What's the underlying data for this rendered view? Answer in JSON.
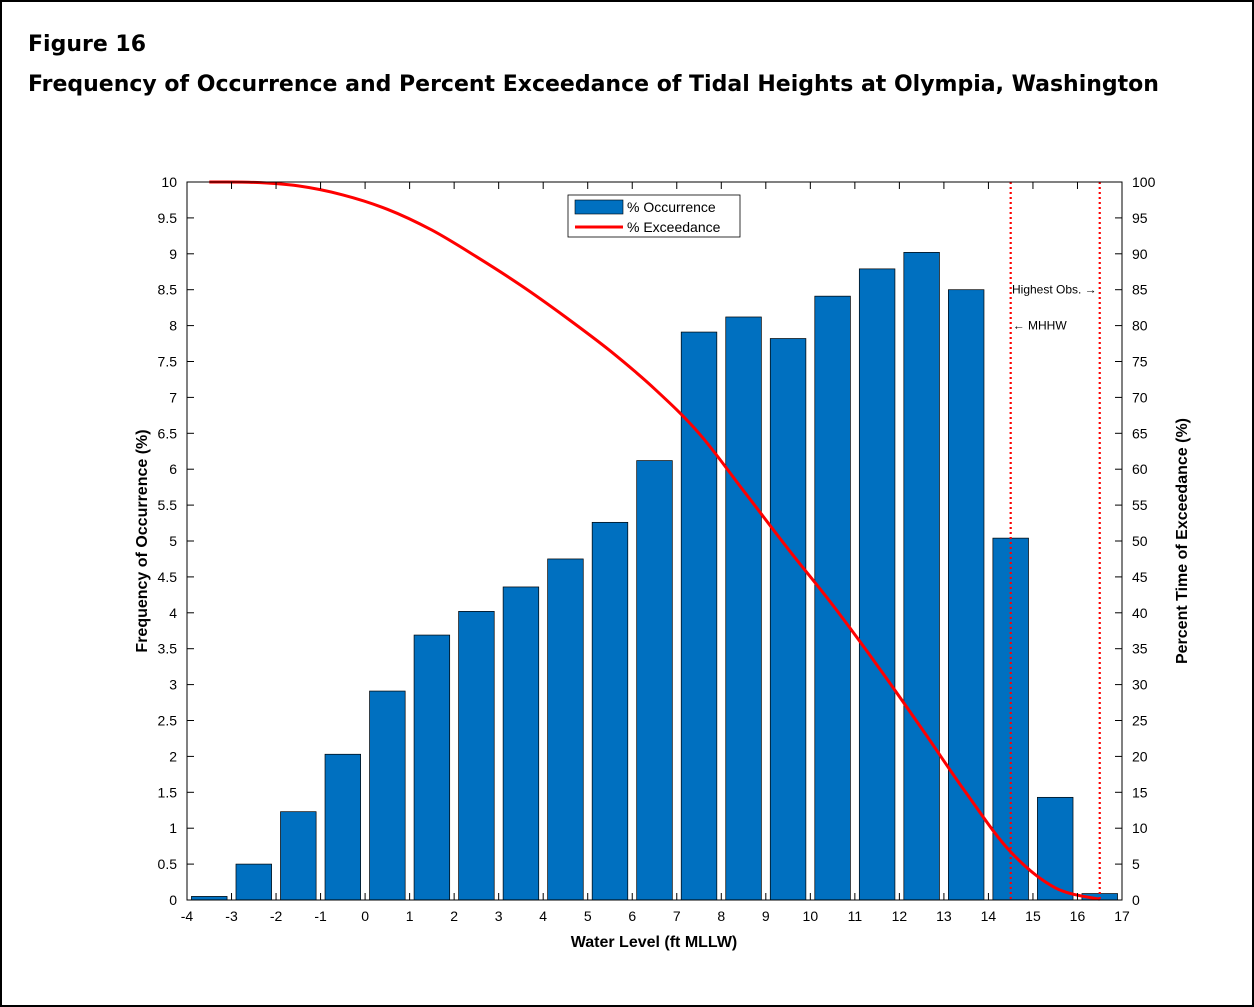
{
  "figure": {
    "label": "Figure 16",
    "title": "Frequency of Occurrence and Percent Exceedance of Tidal Heights at Olympia, Washington"
  },
  "chart_data": {
    "type": "bar",
    "xlabel": "Water Level (ft MLLW)",
    "ylabel_left": "Frequency of Occurrence (%)",
    "ylabel_right": "Percent Time of Exceedance (%)",
    "xlim": [
      -4,
      17
    ],
    "ylim_left": [
      0,
      10
    ],
    "ylim_right": [
      0,
      100
    ],
    "x_ticks": [
      -4,
      -3,
      -2,
      -1,
      0,
      1,
      2,
      3,
      4,
      5,
      6,
      7,
      8,
      9,
      10,
      11,
      12,
      13,
      14,
      15,
      16,
      17
    ],
    "y_ticks_left": [
      0,
      0.5,
      1,
      1.5,
      2,
      2.5,
      3,
      3.5,
      4,
      4.5,
      5,
      5.5,
      6,
      6.5,
      7,
      7.5,
      8,
      8.5,
      9,
      9.5,
      10
    ],
    "y_ticks_right": [
      0,
      5,
      10,
      15,
      20,
      25,
      30,
      35,
      40,
      45,
      50,
      55,
      60,
      65,
      70,
      75,
      80,
      85,
      90,
      95,
      100
    ],
    "grid": false,
    "legend_placement": "top-center",
    "series": [
      {
        "name": "% Occurrence",
        "kind": "bar",
        "color": "#0070C0",
        "axis": "left",
        "x": [
          -3.5,
          -2.5,
          -1.5,
          -0.5,
          0.5,
          1.5,
          2.5,
          3.5,
          4.5,
          5.5,
          6.5,
          7.5,
          8.5,
          9.5,
          10.5,
          11.5,
          12.5,
          13.5,
          14.5,
          15.5,
          16.5
        ],
        "values": [
          0.05,
          0.5,
          1.23,
          2.03,
          2.91,
          3.69,
          4.02,
          4.36,
          4.75,
          5.26,
          6.12,
          7.91,
          8.12,
          7.82,
          8.41,
          8.79,
          9.02,
          8.5,
          5.04,
          1.43,
          0.09
        ]
      },
      {
        "name": "% Exceedance",
        "kind": "line",
        "color": "#FF0000",
        "axis": "right",
        "x": [
          -3.5,
          -2.5,
          -1.5,
          -0.5,
          0.5,
          1.5,
          2.5,
          3.5,
          4.5,
          5.5,
          6.5,
          7.5,
          8.5,
          9.5,
          10.5,
          11.5,
          12.5,
          13.5,
          14.5,
          15.5,
          16.5
        ],
        "values": [
          100,
          99.95,
          99.45,
          98.2,
          96.2,
          93.3,
          89.6,
          85.6,
          81.2,
          76.5,
          71.2,
          65.0,
          57.0,
          48.9,
          41.1,
          32.7,
          23.9,
          14.9,
          6.7,
          1.7,
          0.1
        ]
      }
    ],
    "reference_lines": [
      {
        "x": 14.5,
        "label": "← MHHW",
        "color": "#FF0000",
        "style": "dotted"
      },
      {
        "x": 16.5,
        "label": "Highest Obs. →",
        "color": "#FF0000",
        "style": "dotted"
      }
    ]
  }
}
